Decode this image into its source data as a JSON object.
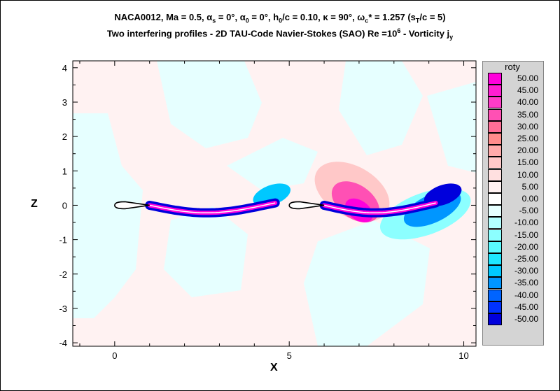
{
  "title_line1": {
    "pre": "NACA0012, Ma = 0.5, α",
    "s_sub": "s",
    "mid1": " = 0°, α",
    "zero_sub": "0",
    "mid2": " = 0°,  h",
    "h_sub": "0",
    "mid3": "/c = 0.10,  κ = 90°, ω",
    "c_sub": "c",
    "mid4": "* = 1.257  (s",
    "t_sub": "T",
    "end": "/c = 5)"
  },
  "title_line2": {
    "pre": "Two interfering profiles - 2D TAU-Code Navier-Stokes (SAO) Re =10",
    "sup": "6",
    "mid": " - Vorticity j",
    "sub": "y"
  },
  "chart_data": {
    "type": "heatmap",
    "xlabel": "X",
    "ylabel": "Z",
    "xlim": [
      -1.2,
      10.35
    ],
    "ylim": [
      -4.1,
      4.2
    ],
    "xticks": [
      0,
      5,
      10
    ],
    "yticks": [
      4,
      3,
      2,
      1,
      0,
      -1,
      -2,
      -3,
      -4
    ],
    "colorbar": {
      "title": "roty",
      "levels": [
        "50.00",
        "45.00",
        "40.00",
        "35.00",
        "30.00",
        "25.00",
        "20.00",
        "15.00",
        "10.00",
        "5.00",
        "0.00",
        "-5.00",
        "-10.00",
        "-15.00",
        "-20.00",
        "-25.00",
        "-30.00",
        "-35.00",
        "-40.00",
        "-45.00",
        "-50.00"
      ],
      "colors": [
        "#ff00dc",
        "#ff1ed2",
        "#ff3cc8",
        "#ff50b4",
        "#ff6e96",
        "#ff8c8c",
        "#ffaaaa",
        "#ffc8c8",
        "#ffe0e0",
        "#fff2f2",
        "#ffffff",
        "#e6ffff",
        "#b4ffff",
        "#8cffff",
        "#5afaff",
        "#1ee6ff",
        "#00c8ff",
        "#0096ff",
        "#0064ff",
        "#0032ff",
        "#0000dc"
      ]
    },
    "airfoils": [
      {
        "x_start": 0,
        "x_end": 1,
        "z": 0
      },
      {
        "x_start": 5,
        "x_end": 6,
        "z": 0
      }
    ]
  }
}
